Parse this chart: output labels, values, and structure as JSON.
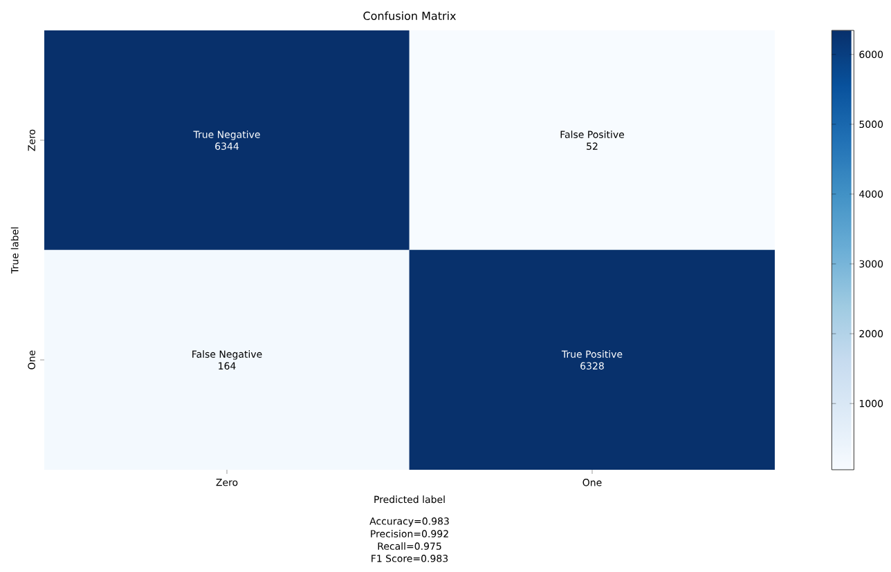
{
  "chart_data": {
    "type": "heatmap",
    "title": "Confusion Matrix",
    "xlabel": "Predicted label",
    "ylabel": "True label",
    "categories": [
      "Zero",
      "One"
    ],
    "y_categories": [
      "Zero",
      "One"
    ],
    "cells": [
      [
        6344,
        52
      ],
      [
        164,
        6328
      ]
    ],
    "cell_labels": [
      [
        [
          "True Negative",
          "6344"
        ],
        [
          "False Positive",
          "52"
        ]
      ],
      [
        [
          "False Negative",
          "164"
        ],
        [
          "True Positive",
          "6328"
        ]
      ]
    ],
    "clim": [
      52,
      6344
    ],
    "cticks": [
      1000,
      2000,
      3000,
      4000,
      5000,
      6000
    ],
    "annotations": [
      "Accuracy=0.983",
      "Precision=0.992",
      "Recall=0.975",
      "F1 Score=0.983"
    ]
  }
}
